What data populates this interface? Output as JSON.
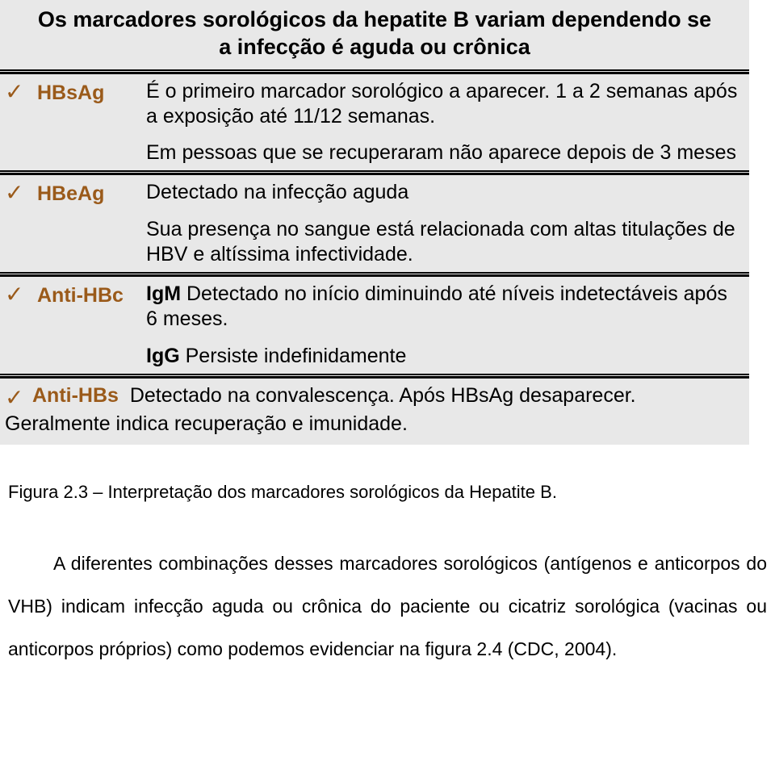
{
  "slide": {
    "bg": "#e8e8e8",
    "title": "Os marcadores sorológicos da hepatite B variam dependendo se a infecção é aguda ou crônica",
    "accent_color": "#9a5a1a",
    "checkmark": "✓",
    "rows": [
      {
        "marker": "HBsAg",
        "paras": [
          "É o primeiro marcador sorológico a aparecer. 1 a 2 semanas após a exposição até 11/12 semanas.",
          "Em pessoas que se recuperaram não aparece depois de 3 meses"
        ]
      },
      {
        "marker": "HBeAg",
        "paras": [
          "Detectado na infecção aguda",
          "Sua presença no sangue está relacionada com altas titulações de HBV e altíssima infectividade."
        ]
      },
      {
        "marker": "Anti-HBc",
        "ig_rows": [
          {
            "label": "IgM",
            "text": "Detectado no início diminuindo até níveis indetectáveis após 6 meses."
          },
          {
            "label": "IgG",
            "text": "Persiste indefinidamente"
          }
        ]
      }
    ],
    "last_row": {
      "marker": "Anti-HBs",
      "text": "Detectado na convalescença. Após HBsAg desaparecer. Geralmente indica recuperação e imunidade."
    }
  },
  "caption": "Figura 2.3 – Interpretação dos marcadores sorológicos da Hepatite B.",
  "paragraph": "A diferentes combinações desses marcadores sorológicos (antígenos e anticorpos do VHB) indicam infecção aguda ou crônica do paciente ou cicatriz sorológica (vacinas ou anticorpos próprios) como podemos evidenciar na figura 2.4 (CDC, 2004)."
}
